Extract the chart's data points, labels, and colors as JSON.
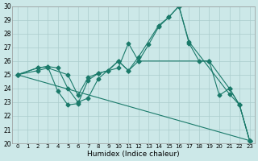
{
  "xlabel": "Humidex (Indice chaleur)",
  "bg_color": "#cce8e8",
  "grid_color": "#aacccc",
  "line_color": "#1a7a6a",
  "ylim": [
    20,
    30
  ],
  "xlim": [
    -0.5,
    23.5
  ],
  "yticks": [
    20,
    21,
    22,
    23,
    24,
    25,
    26,
    27,
    28,
    29,
    30
  ],
  "xticks": [
    0,
    1,
    2,
    3,
    4,
    5,
    6,
    7,
    8,
    9,
    10,
    11,
    12,
    13,
    14,
    15,
    16,
    17,
    18,
    19,
    20,
    21,
    22,
    23
  ],
  "series": [
    {
      "x": [
        0,
        2,
        3,
        5,
        6,
        7,
        8,
        9,
        10,
        11,
        12,
        13,
        14,
        15,
        16,
        17,
        18,
        19,
        21,
        22,
        23
      ],
      "y": [
        25.0,
        25.3,
        25.5,
        25.0,
        23.5,
        24.8,
        25.1,
        25.3,
        25.5,
        27.3,
        26.0,
        27.2,
        28.5,
        29.2,
        30.0,
        27.3,
        26.0,
        26.0,
        24.0,
        22.8,
        20.2
      ]
    },
    {
      "x": [
        0,
        2,
        3,
        4,
        5,
        6,
        7,
        8,
        10,
        11,
        12,
        14,
        15,
        16,
        17,
        21,
        22,
        23
      ],
      "y": [
        25.0,
        25.5,
        25.6,
        25.5,
        24.0,
        23.0,
        23.3,
        24.7,
        26.0,
        25.3,
        26.3,
        28.6,
        29.2,
        30.0,
        27.4,
        23.6,
        22.8,
        20.2
      ]
    },
    {
      "x": [
        0,
        2,
        3,
        4,
        5,
        6,
        7,
        8,
        9,
        10,
        11,
        12,
        19,
        20,
        21,
        22,
        23
      ],
      "y": [
        25.0,
        25.5,
        25.6,
        23.8,
        22.8,
        22.9,
        24.6,
        25.1,
        25.3,
        26.0,
        25.3,
        26.0,
        26.0,
        23.5,
        24.0,
        22.8,
        20.2
      ]
    },
    {
      "x": [
        0,
        23
      ],
      "y": [
        25.0,
        20.2
      ]
    }
  ]
}
